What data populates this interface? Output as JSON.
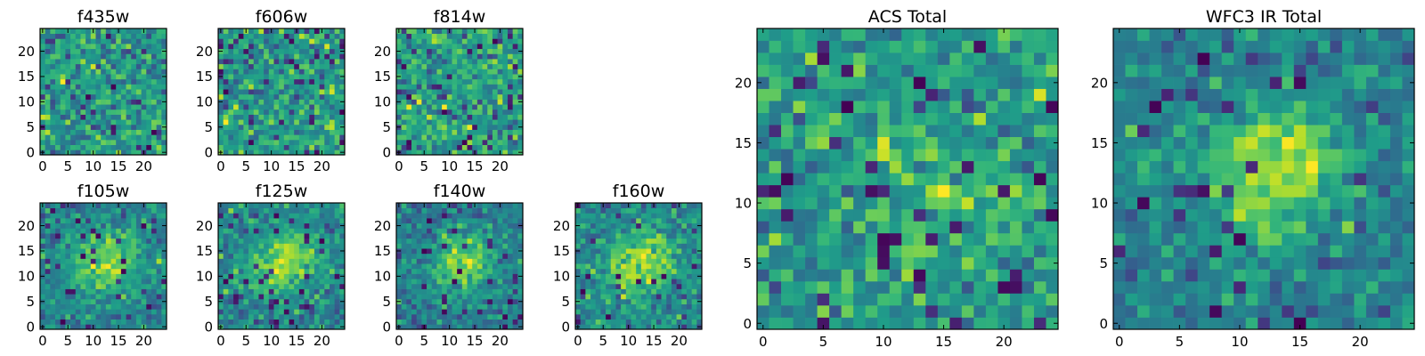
{
  "chart_data": [
    {
      "type": "heatmap",
      "id": "f435w",
      "title": "f435w",
      "grid_size": 25,
      "xticks": [
        0,
        5,
        10,
        15,
        20
      ],
      "yticks": [
        0,
        5,
        10,
        15,
        20
      ],
      "pattern": "noise",
      "seed": 11,
      "sigma": 0,
      "colormap": "viridis"
    },
    {
      "type": "heatmap",
      "id": "f606w",
      "title": "f606w",
      "grid_size": 25,
      "xticks": [
        0,
        5,
        10,
        15,
        20
      ],
      "yticks": [
        0,
        5,
        10,
        15,
        20
      ],
      "pattern": "noise",
      "seed": 23,
      "sigma": 0,
      "colormap": "viridis"
    },
    {
      "type": "heatmap",
      "id": "f814w",
      "title": "f814w",
      "grid_size": 25,
      "xticks": [
        0,
        5,
        10,
        15,
        20
      ],
      "yticks": [
        0,
        5,
        10,
        15,
        20
      ],
      "pattern": "noise",
      "seed": 37,
      "sigma": 0,
      "colormap": "viridis"
    },
    {
      "type": "heatmap",
      "id": "f105w",
      "title": "f105w",
      "grid_size": 25,
      "xticks": [
        0,
        5,
        10,
        15,
        20
      ],
      "yticks": [
        0,
        5,
        10,
        15,
        20
      ],
      "pattern": "source",
      "seed": 41,
      "sigma": 4.2,
      "colormap": "viridis"
    },
    {
      "type": "heatmap",
      "id": "f125w",
      "title": "f125w",
      "grid_size": 25,
      "xticks": [
        0,
        5,
        10,
        15,
        20
      ],
      "yticks": [
        0,
        5,
        10,
        15,
        20
      ],
      "pattern": "source",
      "seed": 53,
      "sigma": 4.0,
      "colormap": "viridis"
    },
    {
      "type": "heatmap",
      "id": "f140w",
      "title": "f140w",
      "grid_size": 25,
      "xticks": [
        0,
        5,
        10,
        15,
        20
      ],
      "yticks": [
        0,
        5,
        10,
        15,
        20
      ],
      "pattern": "source",
      "seed": 67,
      "sigma": 3.8,
      "colormap": "viridis"
    },
    {
      "type": "heatmap",
      "id": "f160w",
      "title": "f160w",
      "grid_size": 25,
      "xticks": [
        0,
        5,
        10,
        15,
        20
      ],
      "yticks": [
        0,
        5,
        10,
        15,
        20
      ],
      "pattern": "source",
      "seed": 79,
      "sigma": 4.0,
      "colormap": "viridis"
    },
    {
      "type": "heatmap",
      "id": "acs-total",
      "title": "ACS Total",
      "grid_size": 25,
      "xticks": [
        0,
        5,
        10,
        15,
        20
      ],
      "yticks": [
        0,
        5,
        10,
        15,
        20
      ],
      "pattern": "noise-bright",
      "seed": 97,
      "sigma": 3.5,
      "colormap": "viridis"
    },
    {
      "type": "heatmap",
      "id": "wfc3-ir-total",
      "title": "WFC3 IR Total",
      "grid_size": 25,
      "xticks": [
        0,
        5,
        10,
        15,
        20
      ],
      "yticks": [
        0,
        5,
        10,
        15,
        20
      ],
      "pattern": "source-strong",
      "seed": 113,
      "sigma": 3.6,
      "colormap": "viridis"
    }
  ]
}
